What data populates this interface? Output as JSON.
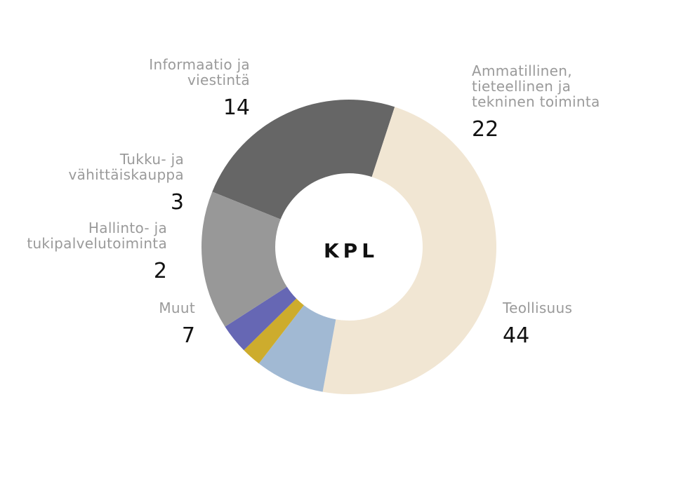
{
  "chart_data": {
    "type": "pie",
    "donut": true,
    "center_label": "KPL",
    "slices": [
      {
        "label_lines": [
          "Ammatillinen,",
          "tieteellinen ja",
          "tekninen toiminta"
        ],
        "value": 22,
        "value_text": "22",
        "color": "#666666"
      },
      {
        "label_lines": [
          "Teollisuus"
        ],
        "value": 44,
        "value_text": "44",
        "color": "#f1e6d3"
      },
      {
        "label_lines": [
          "Muut"
        ],
        "value": 7,
        "value_text": "7",
        "color": "#a1b9d3"
      },
      {
        "label_lines": [
          "Hallinto- ja",
          "tukipalvelutoiminta"
        ],
        "value": 2,
        "value_text": "2",
        "color": "#cdac2d"
      },
      {
        "label_lines": [
          "Tukku- ja",
          "vähittäiskauppa"
        ],
        "value": 3,
        "value_text": "3",
        "color": "#6667b4"
      },
      {
        "label_lines": [
          "Informaatio ja",
          "viestintä"
        ],
        "value": 14,
        "value_text": "14",
        "color": "#989898"
      }
    ]
  }
}
